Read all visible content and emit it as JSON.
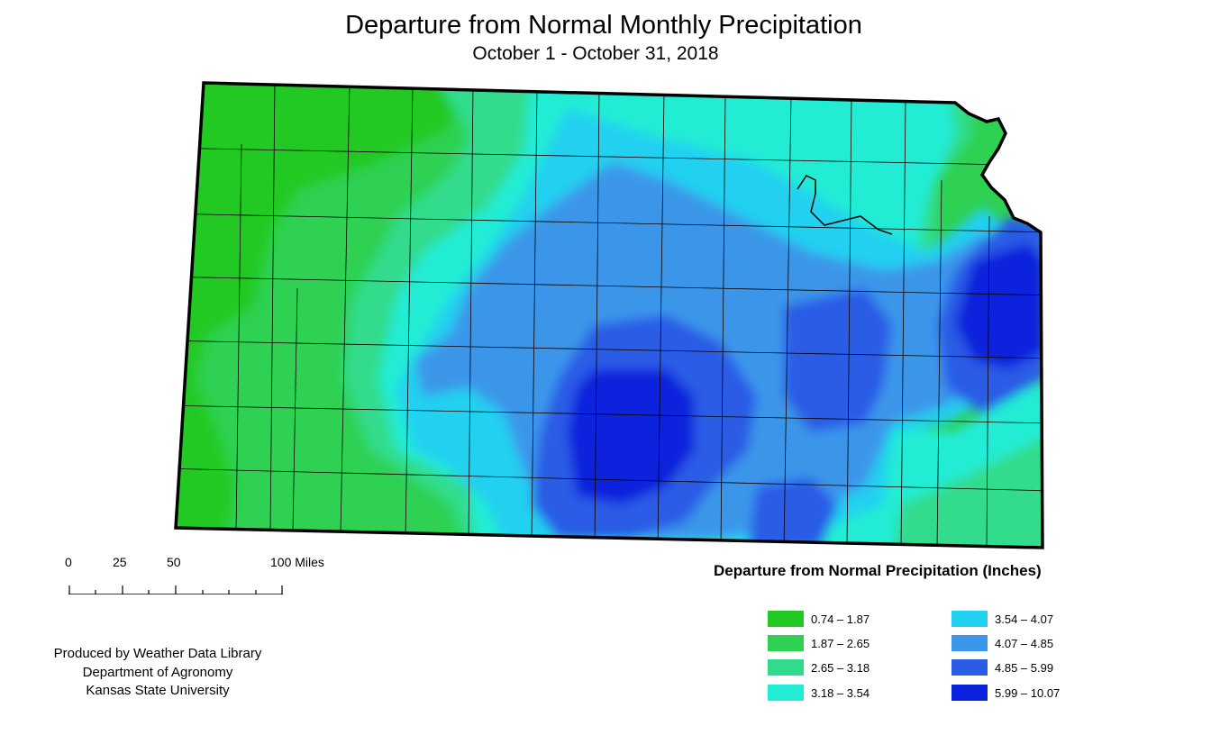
{
  "title": "Departure from Normal Monthly Precipitation",
  "subtitle": "October 1 - October 31, 2018",
  "scale": {
    "labels": [
      "0",
      "25",
      "50",
      "100 Miles"
    ]
  },
  "legend": {
    "title": "Departure from Normal Precipitation (Inches)",
    "items": [
      {
        "label": "0.74 – 1.87",
        "color": "#22c922"
      },
      {
        "label": "1.87 – 2.65",
        "color": "#2ed152"
      },
      {
        "label": "2.65 – 3.18",
        "color": "#30dc8c"
      },
      {
        "label": "3.18 – 3.54",
        "color": "#22ecd4"
      },
      {
        "label": "3.54 – 4.07",
        "color": "#22d0f0"
      },
      {
        "label": "4.07 – 4.85",
        "color": "#3a96ea"
      },
      {
        "label": "4.85 – 5.99",
        "color": "#2a5ce6"
      },
      {
        "label": "5.99 – 10.07",
        "color": "#0a22dc"
      }
    ]
  },
  "credits": {
    "line1": "Produced by Weather Data Library",
    "line2": "Department of Agronomy",
    "line3": "Kansas State University"
  }
}
